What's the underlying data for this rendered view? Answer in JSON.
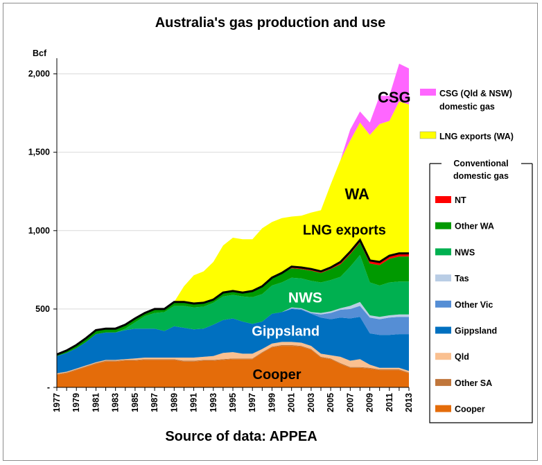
{
  "chart_data": {
    "type": "area",
    "title": "Australia's gas production and use",
    "ylabel": "Bcf",
    "xlabel": "",
    "source": "Source of data: APPEA",
    "ylim": [
      0,
      2100
    ],
    "yticks": [
      0,
      500,
      1000,
      1500,
      2000
    ],
    "ytick_labels": [
      "-",
      "500",
      "1,000",
      "1,500",
      "2,000"
    ],
    "x": [
      1977,
      1978,
      1979,
      1980,
      1981,
      1982,
      1983,
      1984,
      1985,
      1986,
      1987,
      1988,
      1989,
      1990,
      1991,
      1992,
      1993,
      1994,
      1995,
      1996,
      1997,
      1998,
      1999,
      2000,
      2001,
      2002,
      2003,
      2004,
      2005,
      2006,
      2007,
      2008,
      2009,
      2010,
      2011,
      2012,
      2013
    ],
    "xtick_labels": [
      "1977",
      "1979",
      "1981",
      "1983",
      "1985",
      "1987",
      "1989",
      "1991",
      "1993",
      "1995",
      "1997",
      "1999",
      "2001",
      "2003",
      "2005",
      "2007",
      "2009",
      "2011",
      "2013"
    ],
    "stacked": true,
    "series": [
      {
        "name": "Cooper",
        "color": "#e46c0a",
        "values": [
          80,
          90,
          110,
          130,
          150,
          165,
          165,
          170,
          170,
          175,
          175,
          175,
          175,
          165,
          165,
          170,
          170,
          175,
          180,
          180,
          180,
          220,
          255,
          265,
          265,
          260,
          240,
          190,
          180,
          150,
          125,
          125,
          120,
          110,
          110,
          110,
          90
        ]
      },
      {
        "name": "Other SA",
        "color": "#c0763b",
        "values": [
          5,
          5,
          5,
          5,
          5,
          5,
          5,
          5,
          5,
          5,
          5,
          5,
          5,
          5,
          5,
          5,
          5,
          5,
          5,
          5,
          5,
          5,
          5,
          5,
          5,
          5,
          5,
          5,
          5,
          5,
          5,
          5,
          5,
          5,
          5,
          5,
          5
        ]
      },
      {
        "name": "Qld",
        "color": "#fac090",
        "values": [
          5,
          5,
          5,
          5,
          5,
          5,
          5,
          5,
          10,
          10,
          10,
          10,
          10,
          20,
          20,
          20,
          25,
          40,
          40,
          30,
          30,
          20,
          20,
          20,
          20,
          20,
          20,
          20,
          20,
          40,
          40,
          50,
          20,
          10,
          10,
          10,
          10
        ]
      },
      {
        "name": "Gippsland",
        "color": "#0070c0",
        "values": [
          110,
          120,
          130,
          150,
          180,
          175,
          175,
          185,
          190,
          185,
          185,
          170,
          200,
          190,
          180,
          180,
          200,
          210,
          215,
          205,
          190,
          175,
          190,
          190,
          210,
          210,
          205,
          230,
          230,
          250,
          270,
          270,
          200,
          210,
          210,
          215,
          235
        ]
      },
      {
        "name": "Other Vic",
        "color": "#558ed5",
        "values": [
          0,
          0,
          0,
          0,
          0,
          0,
          0,
          0,
          0,
          0,
          0,
          0,
          0,
          0,
          0,
          0,
          0,
          0,
          0,
          0,
          0,
          0,
          0,
          0,
          5,
          5,
          5,
          20,
          40,
          50,
          60,
          70,
          100,
          100,
          110,
          110,
          110
        ]
      },
      {
        "name": "Tas",
        "color": "#b9cde5",
        "values": [
          0,
          0,
          0,
          0,
          0,
          0,
          0,
          0,
          0,
          0,
          0,
          0,
          0,
          0,
          0,
          0,
          0,
          0,
          0,
          0,
          0,
          0,
          0,
          0,
          5,
          5,
          5,
          10,
          10,
          10,
          20,
          25,
          15,
          15,
          15,
          15,
          15
        ]
      },
      {
        "name": "NWS",
        "color": "#00b050",
        "values": [
          0,
          0,
          0,
          0,
          0,
          0,
          0,
          10,
          40,
          80,
          100,
          120,
          130,
          140,
          140,
          140,
          140,
          150,
          150,
          160,
          170,
          175,
          180,
          190,
          190,
          190,
          200,
          195,
          200,
          200,
          250,
          300,
          210,
          200,
          210,
          210,
          210
        ]
      },
      {
        "name": "Other WA",
        "color": "#009900",
        "values": [
          10,
          15,
          20,
          25,
          25,
          25,
          25,
          25,
          25,
          20,
          25,
          20,
          25,
          25,
          25,
          25,
          20,
          25,
          25,
          25,
          40,
          50,
          50,
          60,
          60,
          60,
          65,
          60,
          70,
          80,
          80,
          80,
          120,
          130,
          150,
          160,
          160
        ]
      },
      {
        "name": "NT",
        "color": "#ff0000",
        "values": [
          0,
          0,
          0,
          0,
          0,
          0,
          0,
          0,
          0,
          0,
          0,
          0,
          0,
          0,
          0,
          0,
          0,
          0,
          0,
          0,
          0,
          0,
          0,
          0,
          10,
          10,
          10,
          10,
          10,
          15,
          15,
          15,
          20,
          20,
          20,
          20,
          20
        ]
      },
      {
        "name": "LNG exports (WA)",
        "color": "#ffff00",
        "values": [
          0,
          0,
          0,
          0,
          0,
          0,
          0,
          0,
          0,
          0,
          0,
          0,
          0,
          100,
          180,
          200,
          240,
          300,
          340,
          340,
          330,
          370,
          355,
          350,
          320,
          330,
          360,
          390,
          530,
          650,
          710,
          750,
          800,
          880,
          860,
          970,
          950
        ]
      },
      {
        "name": "CSG (Qld & NSW) domestic gas",
        "color": "#ff66ff",
        "values": [
          0,
          0,
          0,
          0,
          0,
          0,
          0,
          0,
          0,
          0,
          0,
          0,
          0,
          0,
          0,
          0,
          0,
          0,
          0,
          0,
          0,
          0,
          0,
          0,
          0,
          0,
          0,
          0,
          0,
          0,
          70,
          70,
          80,
          180,
          160,
          240,
          230
        ]
      }
    ],
    "annotations": [
      {
        "text": "CSG",
        "year": 2011.5,
        "value": 1850,
        "size": 22,
        "color": "#000000"
      },
      {
        "text": "WA",
        "year": 2007.7,
        "value": 1235,
        "size": 22,
        "color": "#000000"
      },
      {
        "text": "LNG exports",
        "year": 2006.4,
        "value": 1005,
        "size": 20,
        "color": "#000000"
      },
      {
        "text": "NWS",
        "year": 2002.4,
        "value": 575,
        "size": 21,
        "color": "#ffffff"
      },
      {
        "text": "Gippsland",
        "year": 2000.4,
        "value": 360,
        "size": 20,
        "color": "#ffffff"
      },
      {
        "text": "Cooper",
        "year": 1999.5,
        "value": 85,
        "size": 20,
        "color": "#000000"
      }
    ],
    "legend": {
      "position": "right",
      "top_items": [
        {
          "label_lines": [
            "CSG (Qld & NSW)",
            "domestic gas"
          ],
          "color": "#ff66ff"
        },
        {
          "label_lines": [
            "LNG exports (WA)"
          ],
          "color": "#ffff00"
        }
      ],
      "group_title_lines": [
        "Conventional",
        "domestic gas"
      ],
      "group_items": [
        {
          "label": "NT",
          "color": "#ff0000"
        },
        {
          "label": "Other WA",
          "color": "#009900"
        },
        {
          "label": "NWS",
          "color": "#00b050"
        },
        {
          "label": "Tas",
          "color": "#b9cde5"
        },
        {
          "label": "Other Vic",
          "color": "#558ed5"
        },
        {
          "label": "Gippsland",
          "color": "#0070c0"
        },
        {
          "label": "Qld",
          "color": "#fac090"
        },
        {
          "label": "Other SA",
          "color": "#c0763b"
        },
        {
          "label": "Cooper",
          "color": "#e46c0a"
        }
      ]
    },
    "grid": {
      "horizontal": true,
      "vertical": false,
      "color": "#d9d9d9"
    }
  }
}
